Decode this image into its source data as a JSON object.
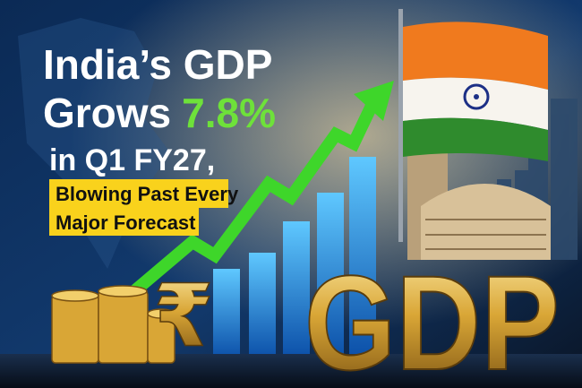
{
  "headline": {
    "line1": "India’s GDP",
    "line2_prefix": "Grows",
    "line2_highlight": "7.8%",
    "line3": "in Q1 FY27,"
  },
  "subheadline": {
    "line1": "Blowing Past Every",
    "line2": "Major Forecast"
  },
  "graphic": {
    "symbol": "₹",
    "label": "GDP"
  }
}
